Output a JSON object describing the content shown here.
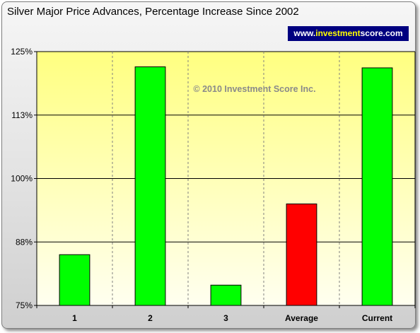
{
  "title": "Silver Major Price Advances, Percentage Increase Since 2002",
  "badge": {
    "prefix": "www.",
    "highlight": "investment",
    "suffix": "score.com"
  },
  "watermark": "© 2010 Investment Score Inc.",
  "colors": {
    "bar_default": "#00ff00",
    "bar_highlight": "#ff0000",
    "plot_bg_top": "#ffff80",
    "plot_bg_bottom": "#fffff0",
    "badge_bg": "#000080",
    "badge_text": "#ffffff",
    "badge_highlight": "#ffff00"
  },
  "chart_data": {
    "type": "bar",
    "title": "Silver Major Price Advances, Percentage Increase Since 2002",
    "xlabel": "",
    "ylabel": "",
    "categories": [
      "1",
      "2",
      "3",
      "Average",
      "Current"
    ],
    "values": [
      85,
      122,
      79,
      95,
      121.8
    ],
    "bar_colors": [
      "#00ff00",
      "#00ff00",
      "#00ff00",
      "#ff0000",
      "#00ff00"
    ],
    "ylim": [
      75,
      125
    ],
    "yticks": [
      75,
      87.5,
      100,
      112.5,
      125
    ],
    "ytick_labels": [
      "75%",
      "88%",
      "100%",
      "113%",
      "125%"
    ],
    "grid": "horizontal solid, vertical dashed",
    "legend": "none"
  }
}
